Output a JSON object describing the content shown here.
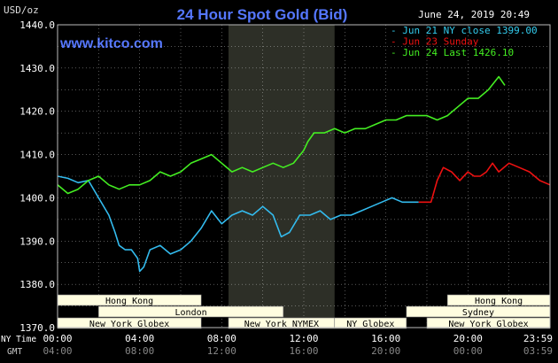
{
  "header": {
    "units": "USD/oz",
    "title": "24 Hour Spot Gold (Bid)",
    "timestamp": "June 24, 2019 20:49",
    "site": "www.kitco.com"
  },
  "colors": {
    "blue": "#33bbee",
    "red": "#ee1111",
    "green": "#44ee22",
    "title": "#5577ff",
    "grid": "#ffffff",
    "shade": "#2d2f27",
    "session_fill": "#fffde0"
  },
  "legend": [
    {
      "text": "- Jun 21 NY close 1399.00",
      "color": "#33ccee"
    },
    {
      "text": "- Jun 23 Sunday",
      "color": "#ee1111"
    },
    {
      "text": "- Jun 24 Last 1426.10",
      "color": "#44ee22"
    }
  ],
  "sessions": [
    {
      "label": "Hong Kong",
      "start": 0,
      "end": 7
    },
    {
      "label": "London",
      "start": 2,
      "end": 11
    },
    {
      "label": "New York Globex",
      "start": 0,
      "end": 7
    },
    {
      "label": "New York NYMEX",
      "start": 8.33,
      "end": 13.5
    },
    {
      "label": "NY Globex",
      "start": 13.5,
      "end": 17
    },
    {
      "label": "Hong Kong",
      "start": 19,
      "end": 24
    },
    {
      "label": "Sydney",
      "start": 17,
      "end": 24
    },
    {
      "label": "New York Globex",
      "start": 18,
      "end": 24
    }
  ],
  "x_footer": {
    "ny_label": "NY Time",
    "gmt_label": "GMT",
    "ny_ticks": [
      "00:00",
      "04:00",
      "08:00",
      "12:00",
      "16:00",
      "20:00",
      "23:59"
    ],
    "gmt_ticks": [
      "04:00",
      "08:00",
      "12:00",
      "16:00",
      "20:00",
      "00:00",
      "03:59"
    ]
  },
  "chart_data": {
    "type": "line",
    "ylabel": "USD/oz",
    "ylim": [
      1370,
      1440
    ],
    "y_ticks": [
      "1370.0",
      "1380.0",
      "1390.0",
      "1400.0",
      "1410.0",
      "1420.0",
      "1430.0",
      "1440.0"
    ],
    "xlim_hours": [
      0,
      24
    ],
    "grid": true,
    "shaded_hours": [
      8.33,
      13.5
    ],
    "series": [
      {
        "name": "Jun 21 NY close 1399.00",
        "color": "#33bbee",
        "x": [
          0,
          0.5,
          1,
          1.5,
          2,
          2.5,
          2.8,
          3,
          3.3,
          3.6,
          3.9,
          4,
          4.2,
          4.5,
          5,
          5.5,
          6,
          6.5,
          7,
          7.5,
          8,
          8.5,
          9,
          9.5,
          10,
          10.5,
          10.9,
          11.3,
          11.8,
          12.3,
          12.8,
          13.3,
          13.8,
          14.3,
          14.8,
          15.3,
          15.8,
          16.3,
          16.8,
          17.3,
          17.6
        ],
        "y": [
          1405,
          1404.5,
          1403.5,
          1404,
          1400,
          1396,
          1392,
          1389,
          1388,
          1388,
          1386,
          1383,
          1384,
          1388,
          1389,
          1387,
          1388,
          1390,
          1393,
          1397,
          1394,
          1396,
          1397,
          1396,
          1398,
          1396,
          1391,
          1392,
          1396,
          1396,
          1397,
          1395,
          1396,
          1396,
          1397,
          1398,
          1399,
          1400,
          1399,
          1399,
          1399
        ]
      },
      {
        "name": "Jun 23 Sunday",
        "color": "#ee1111",
        "x": [
          17.6,
          18.2,
          18.5,
          18.8,
          19.2,
          19.6,
          20,
          20.3,
          20.6,
          20.9,
          21.2,
          21.5,
          22,
          22.5,
          23,
          23.5,
          24
        ],
        "y": [
          1399,
          1399,
          1404,
          1407,
          1406,
          1404,
          1406,
          1405,
          1405,
          1406,
          1408,
          1406,
          1408,
          1407,
          1406,
          1404,
          1403
        ]
      },
      {
        "name": "Jun 24 Last 1426.10",
        "color": "#44ee22",
        "x": [
          0,
          0.5,
          1,
          1.5,
          2,
          2.5,
          3,
          3.5,
          4,
          4.5,
          5,
          5.5,
          6,
          6.5,
          7,
          7.5,
          8,
          8.5,
          9,
          9.5,
          10,
          10.5,
          11,
          11.5,
          12,
          12.2,
          12.5,
          13,
          13.5,
          14,
          14.5,
          15,
          15.5,
          16,
          16.5,
          17,
          17.5,
          18,
          18.5,
          19,
          19.5,
          20,
          20.5,
          21,
          21.5,
          21.8
        ],
        "y": [
          1403,
          1401,
          1402,
          1404,
          1405,
          1403,
          1402,
          1403,
          1403,
          1404,
          1406,
          1405,
          1406,
          1408,
          1409,
          1410,
          1408,
          1406,
          1407,
          1406,
          1407,
          1408,
          1407,
          1408,
          1411,
          1413,
          1415,
          1415,
          1416,
          1415,
          1416,
          1416,
          1417,
          1418,
          1418,
          1419,
          1419,
          1419,
          1418,
          1419,
          1421,
          1423,
          1423,
          1425,
          1428,
          1426
        ]
      }
    ]
  }
}
